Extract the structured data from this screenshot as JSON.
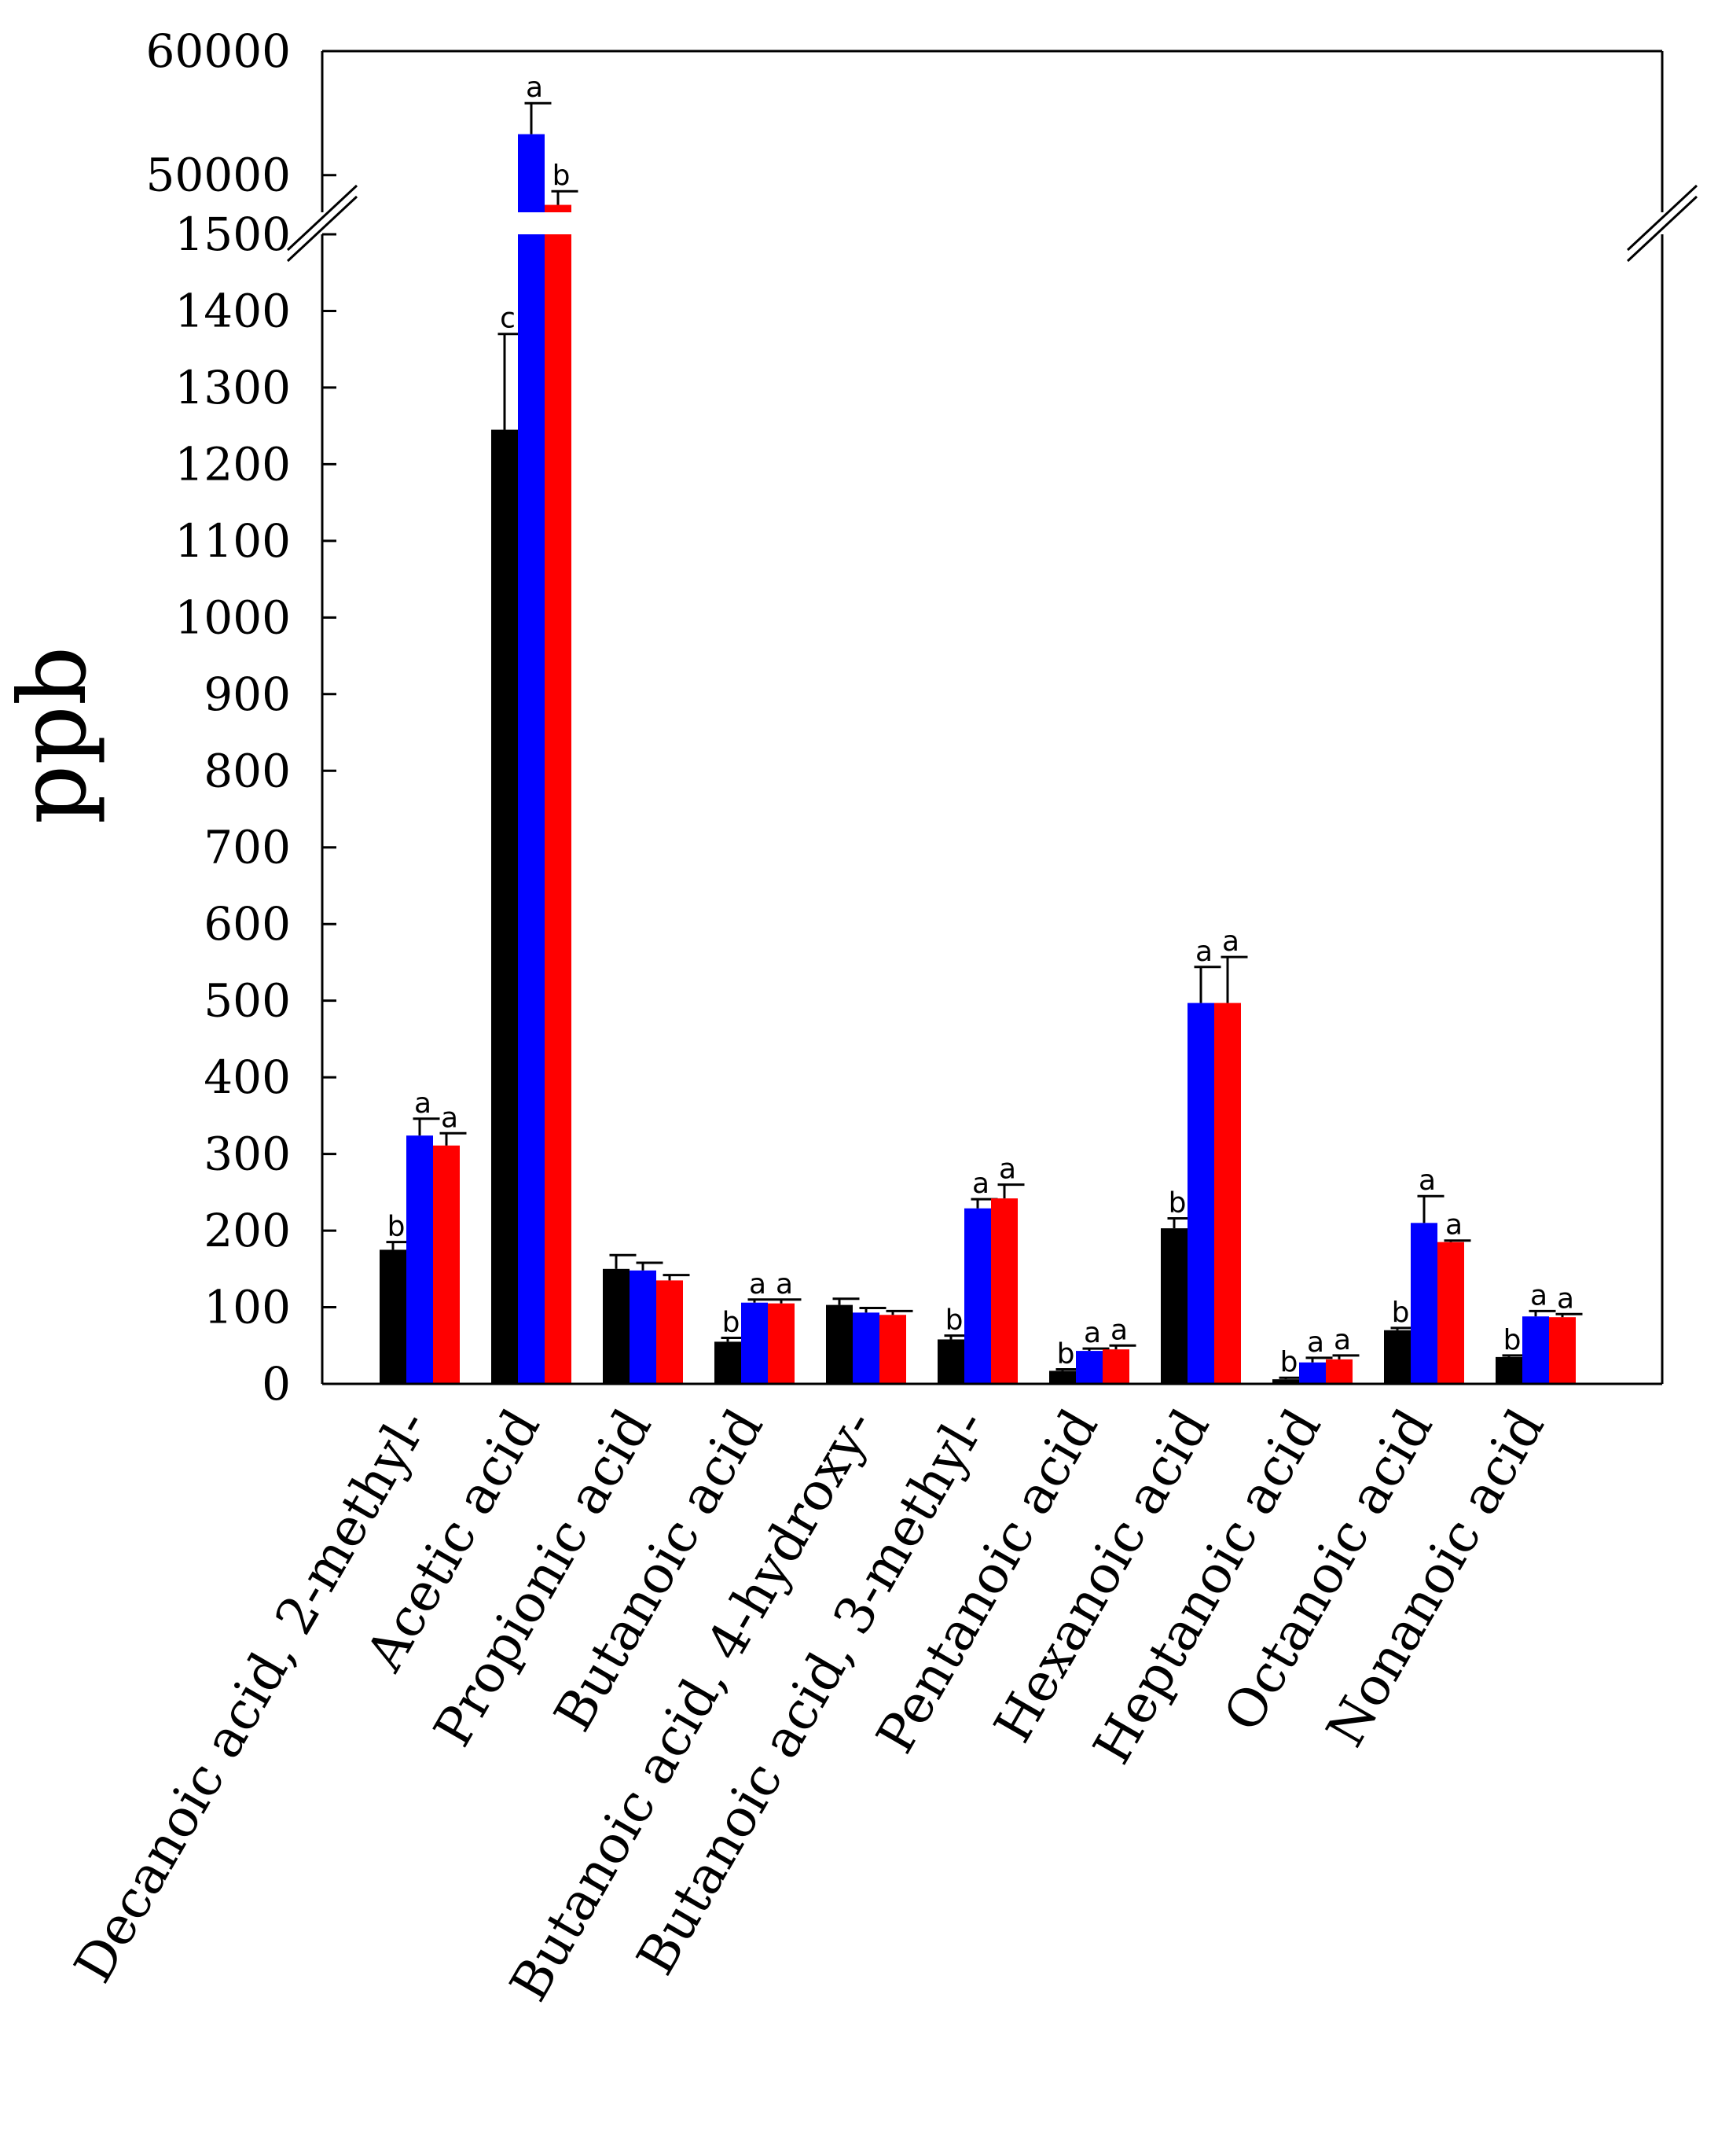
{
  "chart_data": {
    "type": "bar",
    "ylabel": "ppb",
    "y_lower_range": [
      0,
      1500
    ],
    "y_lower_ticks": [
      0,
      100,
      200,
      300,
      400,
      500,
      600,
      700,
      800,
      900,
      1000,
      1100,
      1200,
      1300,
      1400,
      1500
    ],
    "y_upper_range": [
      47000,
      60000
    ],
    "y_upper_ticks": [
      50000,
      60000
    ],
    "axis_break": true,
    "grid": false,
    "legend": "none",
    "categories": [
      "Decanoic acid, 2-methyl-",
      "Acetic acid",
      "Propionic acid",
      "Butanoic acid",
      "Butanoic acid, 4-hydroxy-",
      "Butanoic acid, 3-methyl-",
      "Pentanoic acid",
      "Hexanoic acid",
      "Heptanoic acid",
      "Octanoic acid",
      "Nonanoic acid"
    ],
    "series": [
      {
        "color": "#000000",
        "values": [
          175,
          1245,
          150,
          55,
          103,
          58,
          17,
          203,
          6,
          70,
          35
        ],
        "errors": [
          10,
          125,
          18,
          5,
          8,
          5,
          2,
          13,
          2,
          3,
          2
        ],
        "labels": [
          "b",
          "c",
          "",
          "b",
          "",
          "b",
          "b",
          "b",
          "b",
          "b",
          "b"
        ]
      },
      {
        "color": "#0000ff",
        "values": [
          324,
          53300,
          148,
          106,
          93,
          229,
          43,
          497,
          28,
          210,
          88
        ],
        "errors": [
          22,
          2500,
          10,
          4,
          6,
          12,
          3,
          47,
          6,
          35,
          7
        ],
        "labels": [
          "a",
          "a",
          "",
          "a",
          "",
          "a",
          "a",
          "a",
          "a",
          "a",
          "a"
        ]
      },
      {
        "color": "#ff0000",
        "values": [
          311,
          47600,
          135,
          105,
          90,
          242,
          45,
          497,
          32,
          185,
          87
        ],
        "errors": [
          16,
          1100,
          7,
          5,
          5,
          18,
          5,
          60,
          5,
          2,
          4
        ],
        "labels": [
          "a",
          "b",
          "",
          "a",
          "",
          "a",
          "a",
          "a",
          "a",
          "a",
          "a"
        ]
      }
    ]
  }
}
